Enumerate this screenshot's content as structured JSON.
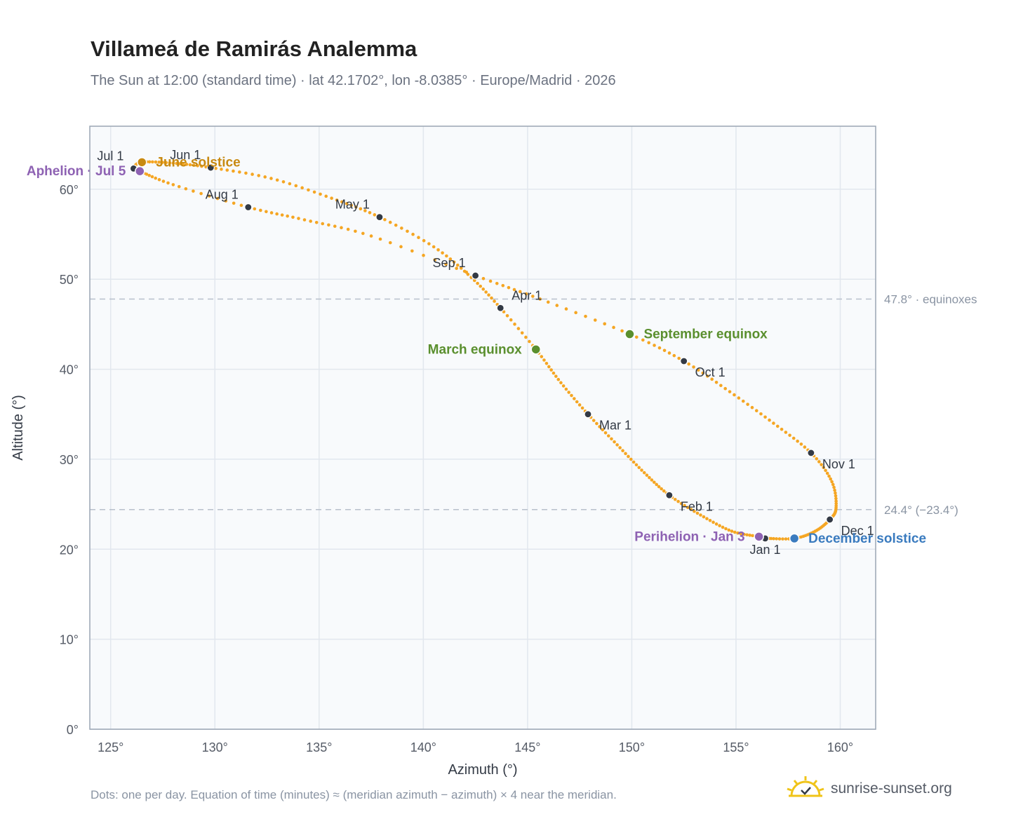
{
  "title": "Villameá de Ramirás Analemma",
  "subtitle": "The Sun at 12:00 (standard time) · lat 42.1702°, lon -8.0385° · Europe/Madrid · 2026",
  "footnote": "Dots: one per day. Equation of time (minutes) ≈ (meridian azimuth − azimuth) × 4 near the meridian.",
  "brand": {
    "name": "sunrise-sunset.org",
    "icon": "sun-logo-icon"
  },
  "colors": {
    "path": "#f5a623",
    "month_marker": "#333a45",
    "solstice_june": "#c88a12",
    "solstice_december": "#3a7bbf",
    "equinox": "#5a8f2e",
    "apsis": "#8e62b3",
    "reference_line": "#b8c0cc",
    "plot_bg": "#f8fafc",
    "grid": "#e2e7ee",
    "axis_frame": "#9aa5b4"
  },
  "chart_data": {
    "type": "scatter",
    "xlabel": "Azimuth (°)",
    "ylabel": "Altitude (°)",
    "xlim": [
      124,
      161.7
    ],
    "ylim": [
      0,
      67
    ],
    "xticks": [
      125,
      130,
      135,
      140,
      145,
      150,
      155,
      160
    ],
    "xtick_labels": [
      "125°",
      "130°",
      "135°",
      "140°",
      "145°",
      "150°",
      "155°",
      "160°"
    ],
    "yticks": [
      0,
      10,
      20,
      30,
      40,
      50,
      60
    ],
    "ytick_labels": [
      "0°",
      "10°",
      "20°",
      "30°",
      "40°",
      "50°",
      "60°"
    ],
    "grid": true,
    "daily_path": [
      {
        "date": "Jan 1",
        "az": 156.4,
        "alt": 21.2
      },
      {
        "date": "Jan 3",
        "az": 156.1,
        "alt": 21.4
      },
      {
        "date": "Jan 10",
        "az": 154.8,
        "alt": 22.0
      },
      {
        "date": "Jan 20",
        "az": 153.3,
        "alt": 23.8
      },
      {
        "date": "Feb 1",
        "az": 151.8,
        "alt": 26.0
      },
      {
        "date": "Feb 10",
        "az": 150.6,
        "alt": 28.5
      },
      {
        "date": "Feb 20",
        "az": 149.3,
        "alt": 31.6
      },
      {
        "date": "Mar 1",
        "az": 147.9,
        "alt": 35.0
      },
      {
        "date": "Mar 10",
        "az": 146.6,
        "alt": 38.5
      },
      {
        "date": "Mar 20",
        "az": 145.4,
        "alt": 42.2
      },
      {
        "date": "Apr 1",
        "az": 143.7,
        "alt": 46.8
      },
      {
        "date": "Apr 10",
        "az": 142.3,
        "alt": 50.2
      },
      {
        "date": "Apr 20",
        "az": 140.5,
        "alt": 53.6
      },
      {
        "date": "May 1",
        "az": 137.9,
        "alt": 56.9
      },
      {
        "date": "May 10",
        "az": 135.6,
        "alt": 59.0
      },
      {
        "date": "May 20",
        "az": 132.7,
        "alt": 61.2
      },
      {
        "date": "Jun 1",
        "az": 129.8,
        "alt": 62.4
      },
      {
        "date": "Jun 10",
        "az": 128.0,
        "alt": 62.9
      },
      {
        "date": "Jun 21",
        "az": 126.5,
        "alt": 63.0
      },
      {
        "date": "Jul 1",
        "az": 126.1,
        "alt": 62.3
      },
      {
        "date": "Jul 5",
        "az": 126.4,
        "alt": 62.0
      },
      {
        "date": "Jul 15",
        "az": 128.0,
        "alt": 60.5
      },
      {
        "date": "Aug 1",
        "az": 131.6,
        "alt": 58.0
      },
      {
        "date": "Aug 10",
        "az": 134.3,
        "alt": 56.6
      },
      {
        "date": "Aug 20",
        "az": 137.5,
        "alt": 54.8
      },
      {
        "date": "Sep 1",
        "az": 142.5,
        "alt": 50.4
      },
      {
        "date": "Sep 10",
        "az": 145.6,
        "alt": 47.8
      },
      {
        "date": "Sep 23",
        "az": 149.9,
        "alt": 43.9
      },
      {
        "date": "Oct 1",
        "az": 152.5,
        "alt": 40.9
      },
      {
        "date": "Oct 10",
        "az": 154.7,
        "alt": 37.5
      },
      {
        "date": "Oct 20",
        "az": 156.8,
        "alt": 34.0
      },
      {
        "date": "Nov 1",
        "az": 158.6,
        "alt": 30.7
      },
      {
        "date": "Nov 10",
        "az": 159.6,
        "alt": 27.5
      },
      {
        "date": "Nov 20",
        "az": 159.8,
        "alt": 24.6
      },
      {
        "date": "Dec 1",
        "az": 159.5,
        "alt": 23.3
      },
      {
        "date": "Dec 10",
        "az": 158.8,
        "alt": 22.0
      },
      {
        "date": "Dec 21",
        "az": 157.8,
        "alt": 21.2
      },
      {
        "date": "Dec 31",
        "az": 156.5,
        "alt": 21.2
      }
    ],
    "month_markers": [
      {
        "label": "Jan 1",
        "az": 156.4,
        "alt": 21.2,
        "label_pos": "below"
      },
      {
        "label": "Feb 1",
        "az": 151.8,
        "alt": 26.0,
        "label_pos": "below-right"
      },
      {
        "label": "Mar 1",
        "az": 147.9,
        "alt": 35.0,
        "label_pos": "below-right"
      },
      {
        "label": "Apr 1",
        "az": 143.7,
        "alt": 46.8,
        "label_pos": "above-right"
      },
      {
        "label": "May 1",
        "az": 137.9,
        "alt": 56.9,
        "label_pos": "above-left"
      },
      {
        "label": "Jun 1",
        "az": 129.8,
        "alt": 62.4,
        "label_pos": "above-left"
      },
      {
        "label": "Jul 1",
        "az": 126.1,
        "alt": 62.3,
        "label_pos": "above-left"
      },
      {
        "label": "Aug 1",
        "az": 131.6,
        "alt": 58.0,
        "label_pos": "above-left"
      },
      {
        "label": "Sep 1",
        "az": 142.5,
        "alt": 50.4,
        "label_pos": "above-left"
      },
      {
        "label": "Oct 1",
        "az": 152.5,
        "alt": 40.9,
        "label_pos": "below-right"
      },
      {
        "label": "Nov 1",
        "az": 158.6,
        "alt": 30.7,
        "label_pos": "below-right"
      },
      {
        "label": "Dec 1",
        "az": 159.5,
        "alt": 23.3,
        "label_pos": "below-right"
      }
    ],
    "events": [
      {
        "label": "June solstice",
        "az": 126.5,
        "alt": 63.0,
        "kind": "solstice_june",
        "label_pos": "right"
      },
      {
        "label": "December solstice",
        "az": 157.8,
        "alt": 21.2,
        "kind": "solstice_december",
        "label_pos": "right"
      },
      {
        "label": "March equinox",
        "az": 145.4,
        "alt": 42.2,
        "kind": "equinox",
        "label_pos": "left"
      },
      {
        "label": "September equinox",
        "az": 149.9,
        "alt": 43.9,
        "kind": "equinox",
        "label_pos": "right"
      },
      {
        "label": "Aphelion · Jul 5",
        "az": 126.4,
        "alt": 62.0,
        "kind": "apsis",
        "label_pos": "left"
      },
      {
        "label": "Perihelion · Jan 3",
        "az": 156.1,
        "alt": 21.4,
        "kind": "apsis",
        "label_pos": "left"
      }
    ],
    "reference_lines": [
      {
        "alt": 47.8,
        "label": "47.8° · equinoxes"
      },
      {
        "alt": 24.4,
        "label": "24.4° (−23.4°)"
      }
    ]
  }
}
